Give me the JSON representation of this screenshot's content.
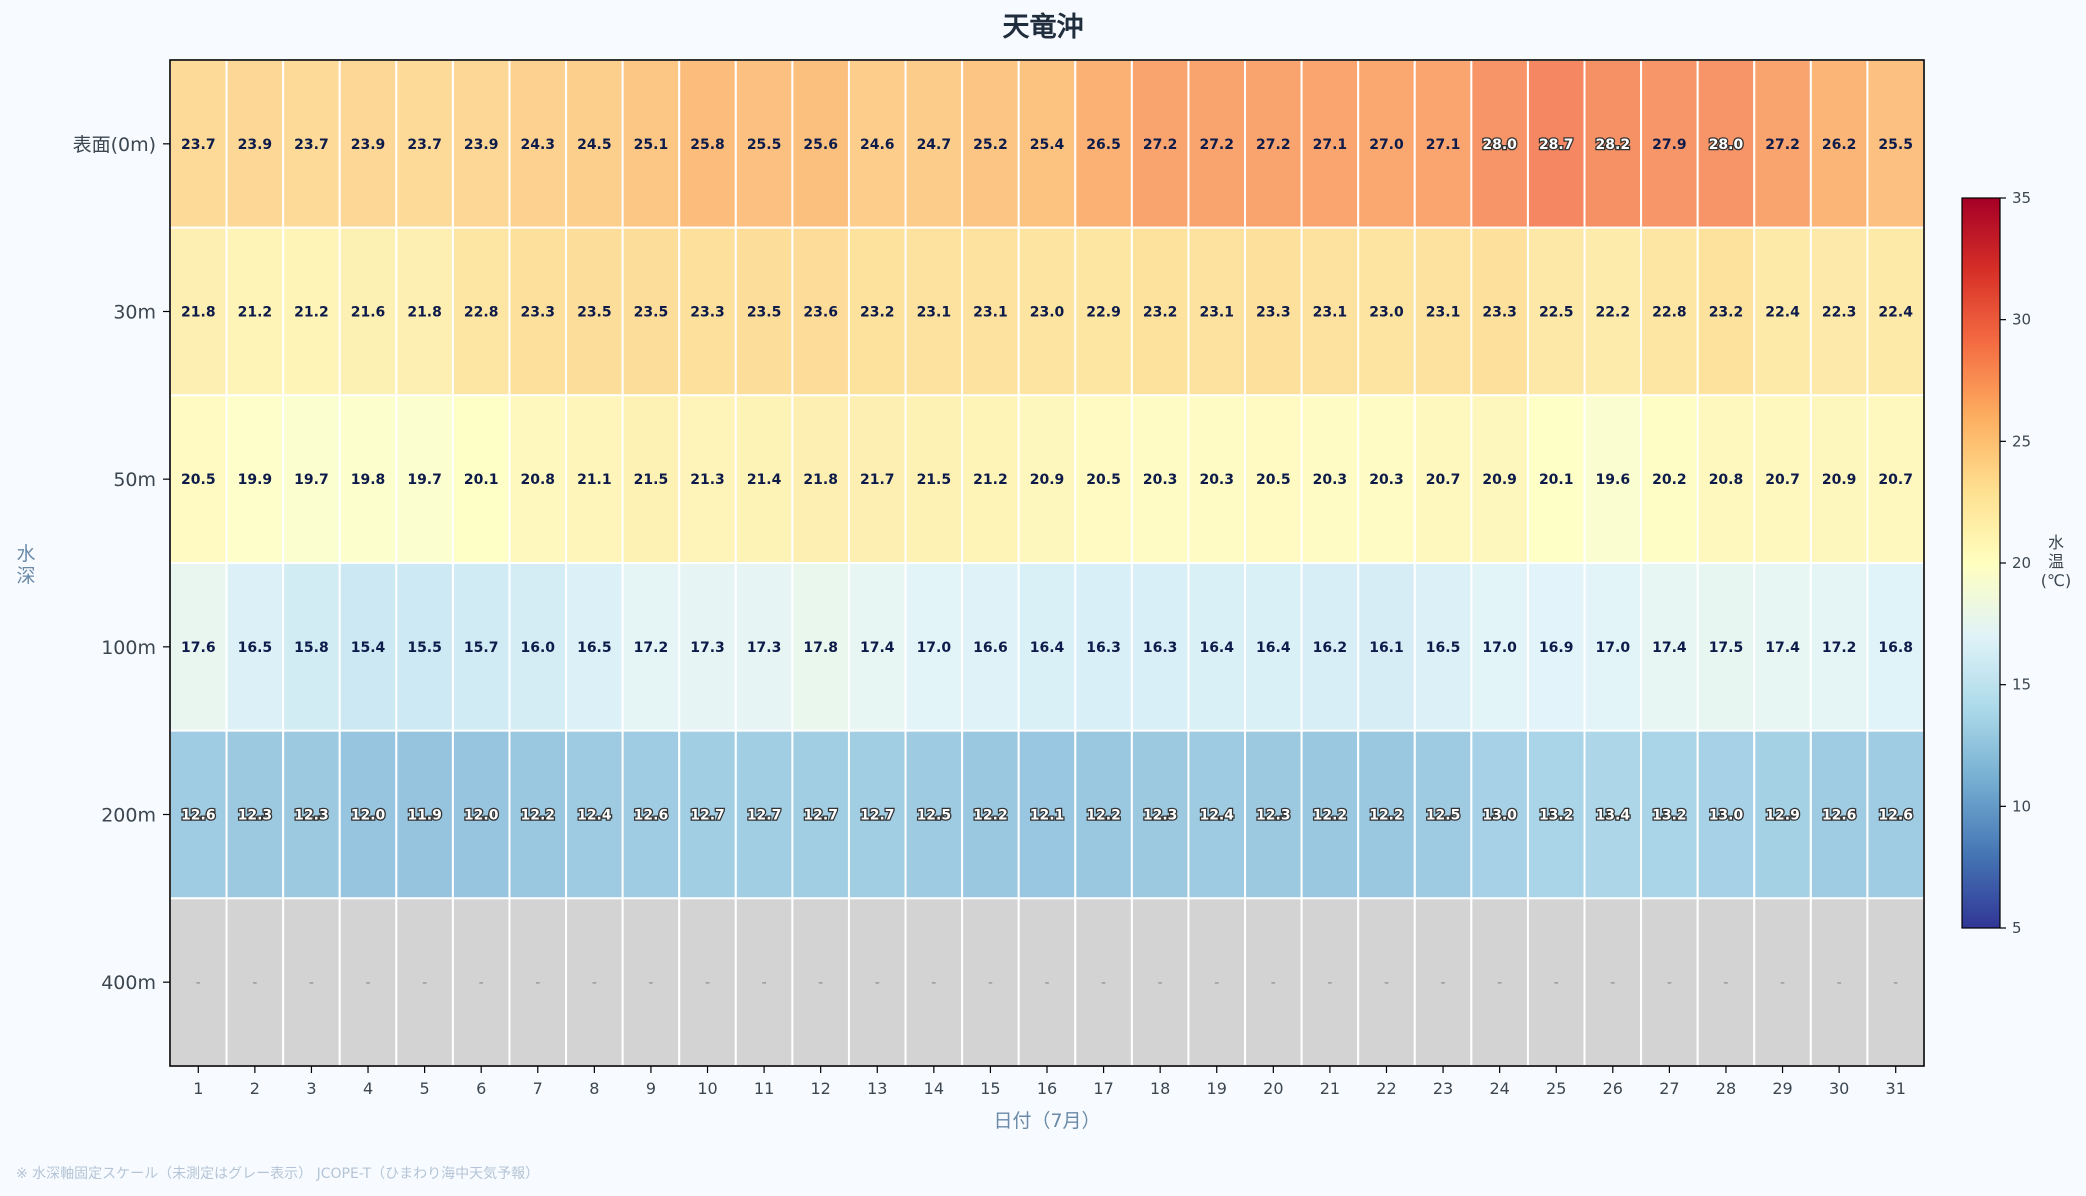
{
  "chart_data": {
    "type": "heatmap",
    "title": "天竜沖",
    "xlabel": "日付（7月）",
    "ylabel": "水深",
    "x": [
      1,
      2,
      3,
      4,
      5,
      6,
      7,
      8,
      9,
      10,
      11,
      12,
      13,
      14,
      15,
      16,
      17,
      18,
      19,
      20,
      21,
      22,
      23,
      24,
      25,
      26,
      27,
      28,
      29,
      30,
      31
    ],
    "y": [
      "表面(0m)",
      "30m",
      "50m",
      "100m",
      "200m",
      "400m"
    ],
    "values": [
      [
        23.7,
        23.9,
        23.7,
        23.9,
        23.7,
        23.9,
        24.3,
        24.5,
        25.1,
        25.8,
        25.5,
        25.6,
        24.6,
        24.7,
        25.2,
        25.4,
        26.5,
        27.2,
        27.2,
        27.2,
        27.1,
        27.0,
        27.1,
        28.0,
        28.7,
        28.2,
        27.9,
        28.0,
        27.2,
        26.2,
        25.5
      ],
      [
        21.8,
        21.2,
        21.2,
        21.6,
        21.8,
        22.8,
        23.3,
        23.5,
        23.5,
        23.3,
        23.5,
        23.6,
        23.2,
        23.1,
        23.1,
        23.0,
        22.9,
        23.2,
        23.1,
        23.3,
        23.1,
        23.0,
        23.1,
        23.3,
        22.5,
        22.2,
        22.8,
        23.2,
        22.4,
        22.3,
        22.4
      ],
      [
        20.5,
        19.9,
        19.7,
        19.8,
        19.7,
        20.1,
        20.8,
        21.1,
        21.5,
        21.3,
        21.4,
        21.8,
        21.7,
        21.5,
        21.2,
        20.9,
        20.5,
        20.3,
        20.3,
        20.5,
        20.3,
        20.3,
        20.7,
        20.9,
        20.1,
        19.6,
        20.2,
        20.8,
        20.7,
        20.9,
        20.7
      ],
      [
        17.6,
        16.5,
        15.8,
        15.4,
        15.5,
        15.7,
        16.0,
        16.5,
        17.2,
        17.3,
        17.3,
        17.8,
        17.4,
        17.0,
        16.6,
        16.4,
        16.3,
        16.3,
        16.4,
        16.4,
        16.2,
        16.1,
        16.5,
        17.0,
        16.9,
        17.0,
        17.4,
        17.5,
        17.4,
        17.2,
        16.8
      ],
      [
        12.6,
        12.3,
        12.3,
        12.0,
        11.9,
        12.0,
        12.2,
        12.4,
        12.6,
        12.7,
        12.7,
        12.7,
        12.7,
        12.5,
        12.2,
        12.1,
        12.2,
        12.3,
        12.4,
        12.3,
        12.2,
        12.2,
        12.5,
        13.0,
        13.2,
        13.4,
        13.2,
        13.0,
        12.9,
        12.6,
        12.6
      ],
      [
        null,
        null,
        null,
        null,
        null,
        null,
        null,
        null,
        null,
        null,
        null,
        null,
        null,
        null,
        null,
        null,
        null,
        null,
        null,
        null,
        null,
        null,
        null,
        null,
        null,
        null,
        null,
        null,
        null,
        null,
        null
      ]
    ],
    "missing_label": "-",
    "colorbar": {
      "label": "水温\n(℃)",
      "range": [
        5,
        35
      ],
      "ticks": [
        5,
        10,
        15,
        20,
        25,
        30,
        35
      ],
      "colormap": "RdYlBu_r"
    },
    "grid": false,
    "legend": "colorbar-right"
  },
  "colors": {
    "background": "#f7fbff",
    "title": "#1f2d3d",
    "axis_label": "#6a8aa8",
    "tick_label": "#3c4650",
    "missing_cell": "#d3d3d3",
    "cell_border": "#ffffff",
    "label_dark_text": "#0d1b4a"
  },
  "footnote": "※ 水深軸固定スケール（未測定はグレー表示） JCOPE-T（ひまわり海中天気予報）"
}
